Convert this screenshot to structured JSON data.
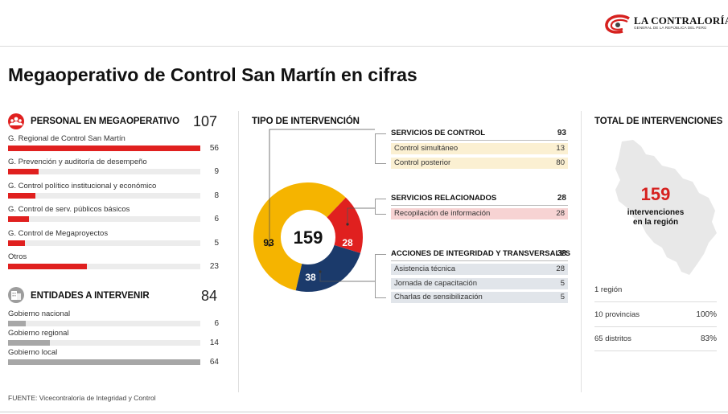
{
  "logo": {
    "name": "LA CONTRALORÍA",
    "subtitle": "GENERAL DE LA REPÚBLICA DEL PERÚ"
  },
  "title": "Megaoperativo de Control San Martín en cifras",
  "personal": {
    "title": "PERSONAL EN MEGAOPERATIVO",
    "total": "107",
    "icon": "people-icon",
    "color": "#e0201f",
    "rows": [
      {
        "label": "G. Regional de Control San Martín",
        "value": 56
      },
      {
        "label": "G. Prevención y auditoría de desempeño",
        "value": 9
      },
      {
        "label": "G. Control político institucional y económico",
        "value": 8
      },
      {
        "label": "G. Control de serv. públicos básicos",
        "value": 6
      },
      {
        "label": "G. Control de Megaproyectos",
        "value": 5
      },
      {
        "label": "Otros",
        "value": 23
      }
    ]
  },
  "entidades": {
    "title": "ENTIDADES A INTERVENIR",
    "total": "84",
    "icon": "building-icon",
    "color": "#a7a7a7",
    "rows": [
      {
        "label": "Gobierno nacional",
        "value": 6
      },
      {
        "label": "Gobierno regional",
        "value": 14
      },
      {
        "label": "Gobierno local",
        "value": 64
      }
    ]
  },
  "tipo": {
    "title": "TIPO DE INTERVENCIÓN",
    "groups": [
      {
        "head": "SERVICIOS DE CONTROL",
        "total": "93",
        "color": "#f5b400",
        "fill": "#fbf0d2",
        "items": [
          {
            "label": "Control simultáneo",
            "value": "13"
          },
          {
            "label": "Control posterior",
            "value": "80"
          }
        ]
      },
      {
        "head": "SERVICIOS RELACIONADOS",
        "total": "28",
        "color": "#e0201f",
        "fill": "#f7d3d3",
        "items": [
          {
            "label": "Recopilación de información",
            "value": "28"
          }
        ]
      },
      {
        "head": "ACCIONES DE INTEGRIDAD Y TRANSVERSALES",
        "total": "38",
        "color": "#1b3a6b",
        "fill": "#e1e5ea",
        "items": [
          {
            "label": "Asistencia técnica",
            "value": "28"
          },
          {
            "label": "Jornada de capacitación",
            "value": "5"
          },
          {
            "label": "Charlas de sensibilización",
            "value": "5"
          }
        ]
      }
    ]
  },
  "chart_data": {
    "type": "pie",
    "donut": true,
    "center_label": "159",
    "slices": [
      {
        "label": "93",
        "value": 93,
        "color": "#f5b400"
      },
      {
        "label": "28",
        "value": 28,
        "color": "#e0201f"
      },
      {
        "label": "38",
        "value": 38,
        "color": "#1b3a6b"
      }
    ]
  },
  "total": {
    "title": "TOTAL DE INTERVENCIONES",
    "value": "159",
    "caption_1": "intervenciones",
    "caption_2": "en la región",
    "map_icon": "san-martin-map-icon",
    "stats": [
      {
        "label": "1 región",
        "value": ""
      },
      {
        "label": "10 provincias",
        "value": "100%"
      },
      {
        "label": "65 distritos",
        "value": "83%"
      }
    ]
  },
  "footnote": "FUENTE: Vicecontraloría de Integridad y Control"
}
